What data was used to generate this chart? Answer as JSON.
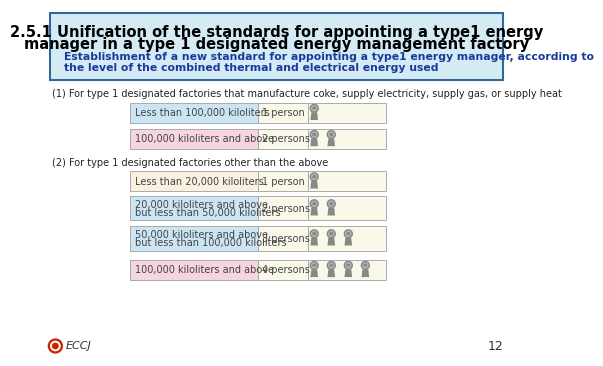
{
  "title_line1": "2.5.1 Unification of the standards for appointing a type1 energy",
  "title_line2": "manager in a type 1 designated energy management factory",
  "subtitle_line1": "Establishment of a new standard for appointing a type1 energy manager, according to",
  "subtitle_line2": "the level of the combined thermal and electrical energy used",
  "section1_label": "(1) For type 1 designated factories that manufacture coke, supply electricity, supply gas, or supply heat",
  "section2_label": "(2) For type 1 designated factories other than the above",
  "section1_rows": [
    {
      "range": "Less than 100,000 kiloliters",
      "persons": "1 person",
      "count": 1,
      "bg_left": "#cce5f5",
      "bg_right": "#faf8e8"
    },
    {
      "range": "100,000 kiloliters and above",
      "persons": "2 persons",
      "count": 2,
      "bg_left": "#f5d5e0",
      "bg_right": "#faf8e8"
    }
  ],
  "section2_rows": [
    {
      "range_lines": [
        "Less than 20,000 kiloliters"
      ],
      "persons": "1 person",
      "count": 1,
      "bg_left": "#faf0e0",
      "bg_right": "#faf8e8"
    },
    {
      "range_lines": [
        "20,000 kiloliters and above,",
        "but less than 50,000 kiloliters"
      ],
      "persons": "2 persons",
      "count": 2,
      "bg_left": "#cce5f5",
      "bg_right": "#faf8e8"
    },
    {
      "range_lines": [
        "50,000 kiloliters and above,",
        "but less than 100,000 kiloliters"
      ],
      "persons": "3 persons",
      "count": 3,
      "bg_left": "#cce5f5",
      "bg_right": "#faf8e8"
    },
    {
      "range_lines": [
        "100,000 kiloliters and above"
      ],
      "persons": "4 persons",
      "count": 4,
      "bg_left": "#f5d5e0",
      "bg_right": "#faf8e8"
    }
  ],
  "header_bg": "#d4eaf5",
  "header_border": "#336699",
  "title_color": "#000000",
  "subtitle_color": "#1a3a9a",
  "section_label_color": "#222222",
  "person_color": "#888888",
  "footer_text": "ECCJ",
  "footer_page": "12",
  "background": "#ffffff",
  "row_text_color": "#444444",
  "title_bold_end": "2.5.1 "
}
